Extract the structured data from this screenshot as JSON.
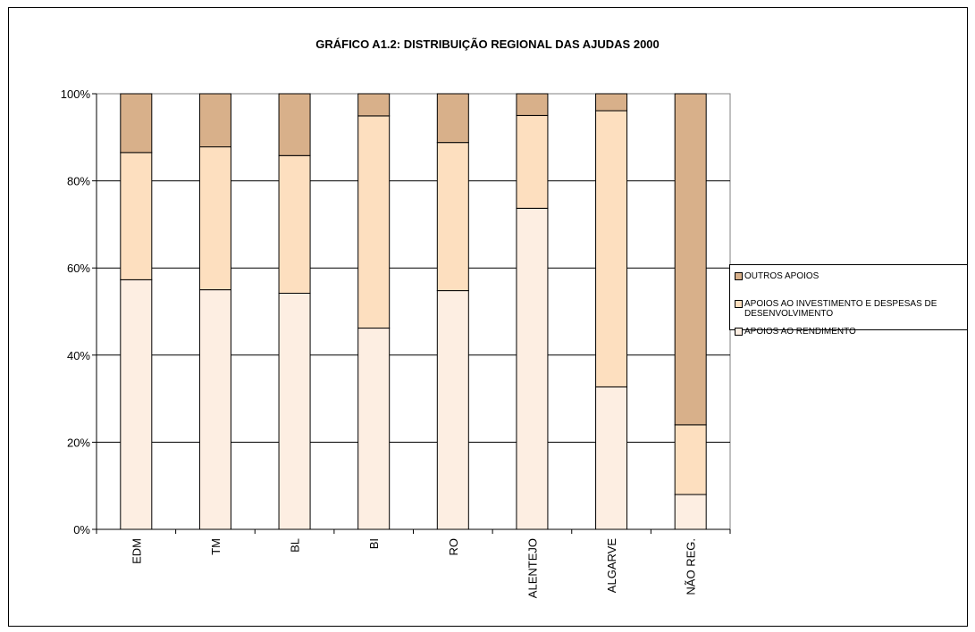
{
  "chart_data": {
    "type": "bar",
    "stacked": true,
    "percent": true,
    "title": "GRÁFICO A1.2: DISTRIBUIÇÃO REGIONAL DAS AJUDAS 2000",
    "categories": [
      "EDM",
      "TM",
      "BL",
      "BI",
      "RO",
      "ALENTEJO",
      "ALGARVE",
      "NÃO REG."
    ],
    "series": [
      {
        "name": "APOIOS AO RENDIMENTO",
        "color": "#FDEEE2",
        "values": [
          57.3,
          55,
          54.2,
          46.2,
          54.8,
          73.7,
          32.7,
          8
        ]
      },
      {
        "name": "APOIOS AO INVESTIMENTO E DESPESAS DE DESENVOLVIMENTO",
        "color": "#FDDFBF",
        "values": [
          29.2,
          32.8,
          31.6,
          48.7,
          34,
          21.3,
          63.4,
          16
        ]
      },
      {
        "name": "OUTROS APOIOS",
        "color": "#D8B08A",
        "values": [
          13.5,
          12.2,
          14.2,
          5.1,
          11.2,
          5,
          3.9,
          76
        ]
      }
    ],
    "yticks": [
      "0%",
      "20%",
      "40%",
      "60%",
      "80%",
      "100%"
    ],
    "ylim": [
      0,
      100
    ],
    "grid": true,
    "legend_position": "right"
  }
}
